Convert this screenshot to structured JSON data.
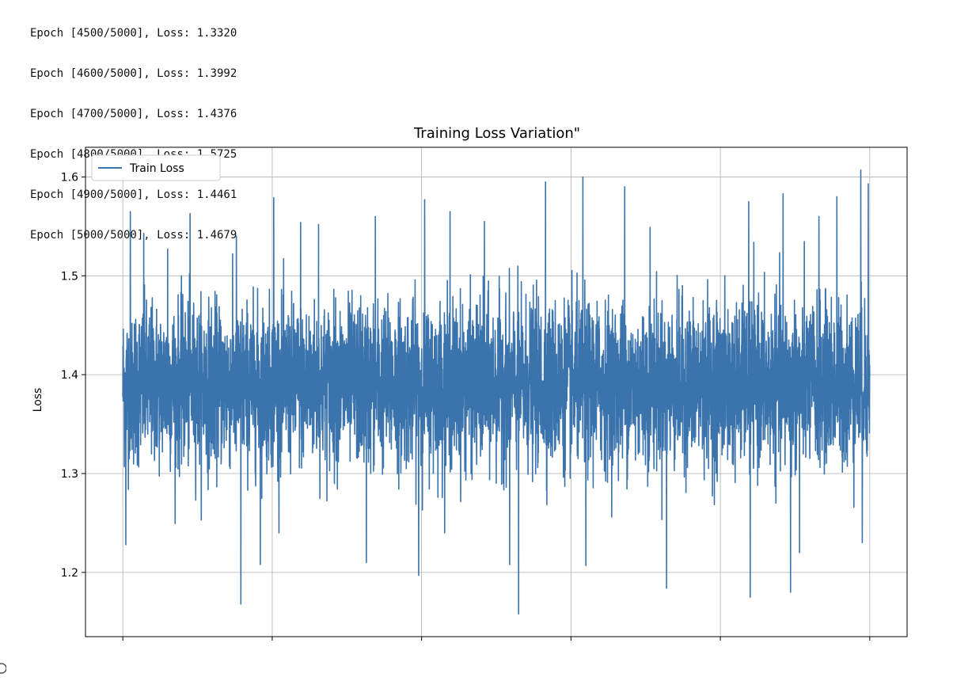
{
  "output_log": [
    "Epoch [4500/5000], Loss: 1.3320",
    "Epoch [4600/5000], Loss: 1.3992",
    "Epoch [4700/5000], Loss: 1.4376",
    "Epoch [4800/5000], Loss: 1.5725",
    "Epoch [4900/5000], Loss: 1.4461",
    "Epoch [5000/5000], Loss: 1.4679"
  ],
  "chart_data": {
    "type": "line",
    "title": "Training Loss Variation\"",
    "xlabel": "",
    "ylabel": "Loss",
    "xlim": [
      -250,
      5250
    ],
    "ylim": [
      1.135,
      1.63
    ],
    "x_ticks": [
      0,
      1000,
      2000,
      3000,
      4000,
      5000
    ],
    "x_tick_labels": [],
    "y_ticks": [
      1.2,
      1.3,
      1.4,
      1.5,
      1.6
    ],
    "y_tick_labels": [
      "1.2",
      "1.3",
      "1.4",
      "1.5",
      "1.6"
    ],
    "grid": true,
    "legend": {
      "position": "top-left",
      "entries": [
        "Train Loss"
      ]
    },
    "series": [
      {
        "name": "Train Loss",
        "color": "#3b73ad",
        "x_start": 0,
        "x_end": 5000,
        "points_count": 5000,
        "mean": 1.39,
        "typical_low": 1.3,
        "typical_high": 1.49,
        "spikes_high": [
          {
            "x": 50,
            "y": 1.565
          },
          {
            "x": 140,
            "y": 1.543
          },
          {
            "x": 300,
            "y": 1.527
          },
          {
            "x": 450,
            "y": 1.563
          },
          {
            "x": 760,
            "y": 1.54
          },
          {
            "x": 1010,
            "y": 1.579
          },
          {
            "x": 1190,
            "y": 1.554
          },
          {
            "x": 1310,
            "y": 1.552
          },
          {
            "x": 1690,
            "y": 1.56
          },
          {
            "x": 2020,
            "y": 1.577
          },
          {
            "x": 2190,
            "y": 1.565
          },
          {
            "x": 2420,
            "y": 1.555
          },
          {
            "x": 2830,
            "y": 1.595
          },
          {
            "x": 3080,
            "y": 1.6
          },
          {
            "x": 3360,
            "y": 1.59
          },
          {
            "x": 3530,
            "y": 1.549
          },
          {
            "x": 4190,
            "y": 1.575
          },
          {
            "x": 4420,
            "y": 1.583
          },
          {
            "x": 4660,
            "y": 1.56
          },
          {
            "x": 4780,
            "y": 1.58
          },
          {
            "x": 4940,
            "y": 1.607
          },
          {
            "x": 4990,
            "y": 1.593
          }
        ],
        "spikes_low": [
          {
            "x": 20,
            "y": 1.228
          },
          {
            "x": 790,
            "y": 1.168
          },
          {
            "x": 920,
            "y": 1.208
          },
          {
            "x": 1630,
            "y": 1.21
          },
          {
            "x": 1980,
            "y": 1.197
          },
          {
            "x": 2590,
            "y": 1.208
          },
          {
            "x": 2650,
            "y": 1.158
          },
          {
            "x": 3100,
            "y": 1.207
          },
          {
            "x": 3640,
            "y": 1.184
          },
          {
            "x": 4200,
            "y": 1.175
          },
          {
            "x": 4470,
            "y": 1.18
          },
          {
            "x": 4530,
            "y": 1.22
          },
          {
            "x": 4950,
            "y": 1.23
          }
        ]
      }
    ]
  }
}
